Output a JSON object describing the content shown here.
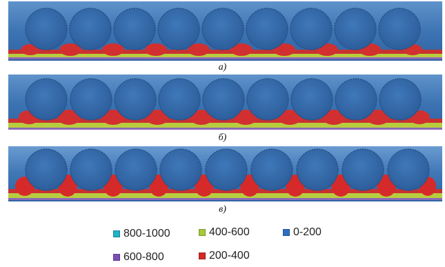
{
  "panels": [
    {
      "caption": "а)"
    },
    {
      "caption": "б)"
    },
    {
      "caption": "в)"
    }
  ],
  "legend": [
    {
      "label": "800-1000",
      "color": "#1fb2c9",
      "icon": "cyan-swatch"
    },
    {
      "label": "400-600",
      "color": "#a6c93a",
      "icon": "green-swatch"
    },
    {
      "label": "0-200",
      "color": "#2f6fc2",
      "icon": "blue-swatch"
    },
    {
      "label": "600-800",
      "color": "#7a4fb8",
      "icon": "purple-swatch"
    },
    {
      "label": "200-400",
      "color": "#d62828",
      "icon": "red-swatch"
    }
  ],
  "colors": {
    "background_blue": "#3f78b8",
    "circle_blue": "#3a6fae",
    "red": "#d12a2a",
    "yellow_green": "#b9cf3e",
    "purple": "#7a4fb8"
  }
}
